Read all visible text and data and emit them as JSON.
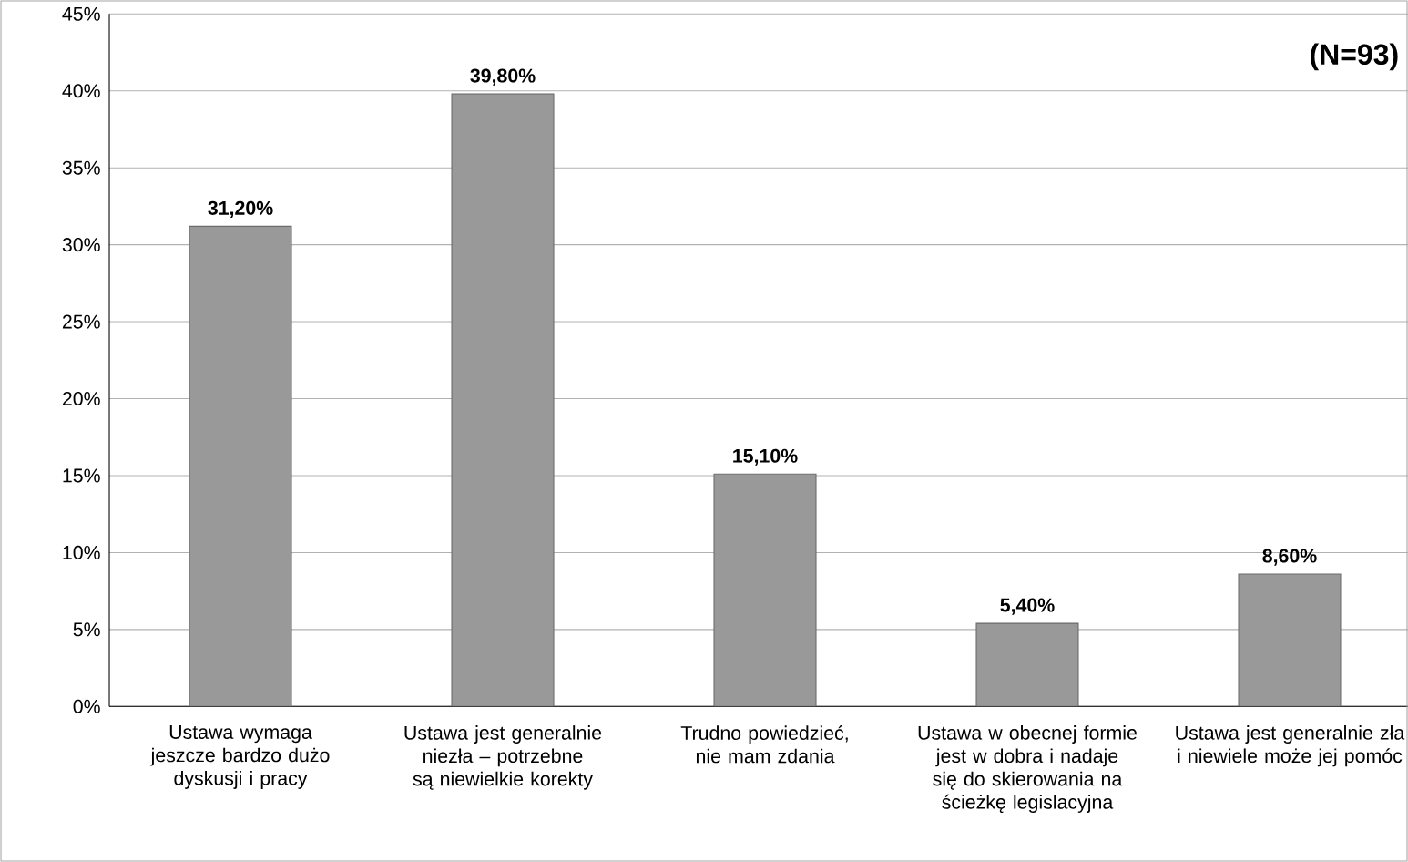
{
  "chart_data": {
    "type": "bar",
    "categories": [
      "Ustawa wymaga jeszcze bardzo dużo dyskusji i pracy",
      "Ustawa jest generalnie niezła – potrzebne są niewielkie korekty",
      "Trudno powiedzieć, nie mam zdania",
      "Ustawa w obecnej formie jest w dobra i nadaje się do skierowania na ścieżkę legislacyjna",
      "Ustawa jest generalnie zła i niewiele może jej pomóc"
    ],
    "values": [
      31.2,
      39.8,
      15.1,
      5.4,
      8.6
    ],
    "value_labels": [
      "31,20%",
      "39,80%",
      "15,10%",
      "5,40%",
      "8,60%"
    ],
    "color": "#999999",
    "ylim": [
      0,
      45
    ],
    "yticks": [
      {
        "value": 0,
        "label": "0%"
      },
      {
        "value": 5,
        "label": "5%"
      },
      {
        "value": 10,
        "label": "10%"
      },
      {
        "value": 15,
        "label": "15%"
      },
      {
        "value": 20,
        "label": "20%"
      },
      {
        "value": 25,
        "label": "25%"
      },
      {
        "value": 30,
        "label": "30%"
      },
      {
        "value": 35,
        "label": "35%"
      },
      {
        "value": 40,
        "label": "40%"
      },
      {
        "value": 45,
        "label": "45%"
      }
    ],
    "grid": "y",
    "annotations": [
      "(N=93)"
    ]
  }
}
